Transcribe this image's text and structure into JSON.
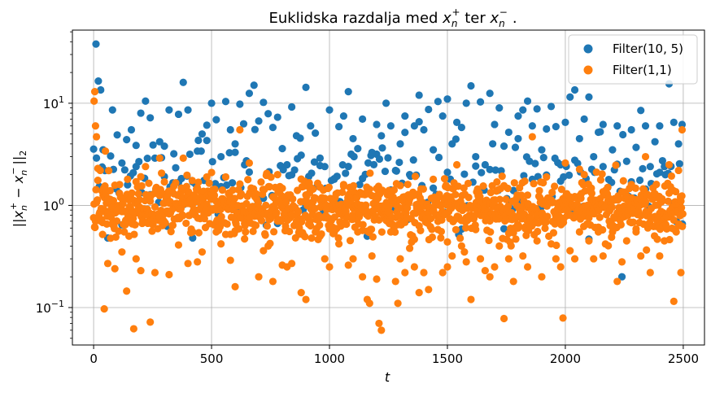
{
  "chart_data": {
    "type": "scatter",
    "title": "Euklidska razdalja med x_n^+ ter x_n^- .",
    "title_parts": {
      "prefix": "Euklidska razdalja med ",
      "v1": "x",
      "v1_sub": "n",
      "v1_sup": "+",
      "mid": " ter ",
      "v2": "x",
      "v2_sub": "n",
      "v2_sup": "−",
      "suffix": "."
    },
    "xlabel": "t",
    "ylabel": "||x_n^+ − x_n^-||_2",
    "ylabel_parts": {
      "open": "||",
      "v1": "x",
      "v1_sub": "n",
      "v1_sup": "+",
      "minus": " − ",
      "v2": "x",
      "v2_sub": "n",
      "v2_sup": "−",
      "close": "||",
      "close_sub": "2"
    },
    "xlim": [
      -90,
      2590
    ],
    "ylim": [
      0.043,
      52
    ],
    "yscale": "log",
    "x_ticks": [
      0,
      500,
      1000,
      1500,
      2000,
      2500
    ],
    "x_tick_labels": [
      "0",
      "500",
      "1000",
      "1500",
      "2000",
      "2500"
    ],
    "y_ticks": [
      0.1,
      1,
      10
    ],
    "y_tick_labels": [
      {
        "base": "10",
        "exp": "−1"
      },
      {
        "base": "10",
        "exp": "0"
      },
      {
        "base": "10",
        "exp": "1"
      }
    ],
    "grid": true,
    "legend_position": "top-right",
    "series": [
      {
        "name": "Filter(10, 5)",
        "color": "#1f77b4",
        "sample_step": 10,
        "points": [
          [
            10,
            38
          ],
          [
            20,
            16.5
          ],
          [
            30,
            13.5
          ],
          [
            40,
            3.5
          ],
          [
            60,
            0.48
          ],
          [
            80,
            8.6
          ],
          [
            100,
            4.9
          ],
          [
            120,
            2.6
          ],
          [
            140,
            4.4
          ],
          [
            160,
            5.5
          ],
          [
            180,
            2.4
          ],
          [
            200,
            8.0
          ],
          [
            220,
            10.5
          ],
          [
            240,
            7.2
          ],
          [
            260,
            2.9
          ],
          [
            280,
            4.2
          ],
          [
            300,
            3.8
          ],
          [
            320,
            8.6
          ],
          [
            340,
            3.2
          ],
          [
            360,
            7.8
          ],
          [
            380,
            16.0
          ],
          [
            400,
            8.6
          ],
          [
            420,
            0.48
          ],
          [
            440,
            3.4
          ],
          [
            460,
            5.0
          ],
          [
            480,
            6.1
          ],
          [
            500,
            10.0
          ],
          [
            520,
            6.9
          ],
          [
            540,
            3.0
          ],
          [
            560,
            10.4
          ],
          [
            580,
            5.5
          ],
          [
            600,
            4.0
          ],
          [
            620,
            9.8
          ],
          [
            640,
            2.5
          ],
          [
            660,
            12.5
          ],
          [
            680,
            15.0
          ],
          [
            700,
            6.7
          ],
          [
            720,
            10.2
          ],
          [
            740,
            7.9
          ],
          [
            760,
            5.8
          ],
          [
            780,
            7.3
          ],
          [
            800,
            3.6
          ],
          [
            820,
            2.5
          ],
          [
            840,
            9.2
          ],
          [
            860,
            4.8
          ],
          [
            880,
            3.1
          ],
          [
            900,
            14.3
          ],
          [
            920,
            6.0
          ],
          [
            940,
            5.1
          ],
          [
            960,
            2.9
          ],
          [
            980,
            2.4
          ],
          [
            1000,
            8.6
          ],
          [
            1020,
            1.8
          ],
          [
            1040,
            5.9
          ],
          [
            1060,
            7.5
          ],
          [
            1080,
            13.0
          ],
          [
            1100,
            4.5
          ],
          [
            1120,
            3.6
          ],
          [
            1140,
            7.0
          ],
          [
            1160,
            0.5
          ],
          [
            1180,
            3.3
          ],
          [
            1200,
            6.2
          ],
          [
            1220,
            4.8
          ],
          [
            1240,
            10.0
          ],
          [
            1260,
            6.0
          ],
          [
            1280,
            2.2
          ],
          [
            1300,
            4.0
          ],
          [
            1320,
            7.5
          ],
          [
            1340,
            2.0
          ],
          [
            1360,
            6.0
          ],
          [
            1380,
            12.0
          ],
          [
            1400,
            5.5
          ],
          [
            1420,
            8.7
          ],
          [
            1440,
            3.5
          ],
          [
            1460,
            10.4
          ],
          [
            1480,
            7.5
          ],
          [
            1500,
            11.0
          ],
          [
            1520,
            4.0
          ],
          [
            1540,
            6.5
          ],
          [
            1560,
            5.8
          ],
          [
            1580,
            10.0
          ],
          [
            1600,
            14.8
          ],
          [
            1620,
            3.0
          ],
          [
            1640,
            10.3
          ],
          [
            1660,
            2.5
          ],
          [
            1680,
            12.5
          ],
          [
            1700,
            6.2
          ],
          [
            1720,
            9.0
          ],
          [
            1740,
            3.8
          ],
          [
            1760,
            5.2
          ],
          [
            1780,
            1.4
          ],
          [
            1800,
            4.5
          ],
          [
            1820,
            8.6
          ],
          [
            1840,
            10.5
          ],
          [
            1860,
            6.0
          ],
          [
            1880,
            8.8
          ],
          [
            1900,
            3.5
          ],
          [
            1920,
            5.6
          ],
          [
            1940,
            9.3
          ],
          [
            1960,
            5.9
          ],
          [
            1980,
            2.5
          ],
          [
            2000,
            6.5
          ],
          [
            2020,
            11.5
          ],
          [
            2040,
            13.5
          ],
          [
            2060,
            4.5
          ],
          [
            2080,
            7.0
          ],
          [
            2100,
            11.5
          ],
          [
            2120,
            3.0
          ],
          [
            2140,
            5.2
          ],
          [
            2160,
            6.2
          ],
          [
            2180,
            1.5
          ],
          [
            2200,
            3.5
          ],
          [
            2220,
            6.0
          ],
          [
            2240,
            0.2
          ],
          [
            2260,
            2.7
          ],
          [
            2280,
            5.5
          ],
          [
            2300,
            3.7
          ],
          [
            2320,
            8.5
          ],
          [
            2340,
            6.0
          ],
          [
            2360,
            2.4
          ],
          [
            2380,
            4.2
          ],
          [
            2400,
            6.0
          ],
          [
            2420,
            2.4
          ],
          [
            2440,
            15.5
          ],
          [
            2460,
            6.5
          ],
          [
            2480,
            4.0
          ],
          [
            2495,
            6.2
          ]
        ]
      },
      {
        "name": "Filter(1,1)",
        "color": "#ff7f0e",
        "sample_step": 10,
        "points": [
          [
            2,
            10.5
          ],
          [
            5,
            13
          ],
          [
            8,
            6
          ],
          [
            12,
            4.7
          ],
          [
            18,
            2.3
          ],
          [
            28,
            2.2
          ],
          [
            38,
            0.52
          ],
          [
            45,
            0.097
          ],
          [
            50,
            3.4
          ],
          [
            60,
            0.27
          ],
          [
            70,
            1.15
          ],
          [
            80,
            0.65
          ],
          [
            90,
            0.24
          ],
          [
            100,
            0.9
          ],
          [
            110,
            1.6
          ],
          [
            120,
            0.35
          ],
          [
            130,
            0.55
          ],
          [
            140,
            0.145
          ],
          [
            150,
            0.5
          ],
          [
            160,
            0.7
          ],
          [
            170,
            0.062
          ],
          [
            180,
            0.3
          ],
          [
            190,
            1.3
          ],
          [
            200,
            0.23
          ],
          [
            220,
            2.4
          ],
          [
            240,
            0.072
          ],
          [
            260,
            0.22
          ],
          [
            280,
            2.9
          ],
          [
            300,
            1.7
          ],
          [
            320,
            0.21
          ],
          [
            340,
            1.3
          ],
          [
            360,
            0.41
          ],
          [
            380,
            2.9
          ],
          [
            400,
            0.27
          ],
          [
            420,
            0.55
          ],
          [
            440,
            0.28
          ],
          [
            460,
            0.35
          ],
          [
            480,
            1.9
          ],
          [
            500,
            2.1
          ],
          [
            520,
            0.55
          ],
          [
            540,
            0.42
          ],
          [
            560,
            1.9
          ],
          [
            580,
            0.29
          ],
          [
            600,
            0.16
          ],
          [
            620,
            5.5
          ],
          [
            640,
            0.47
          ],
          [
            660,
            2.6
          ],
          [
            680,
            0.65
          ],
          [
            700,
            0.2
          ],
          [
            720,
            0.36
          ],
          [
            740,
            0.4
          ],
          [
            760,
            0.18
          ],
          [
            780,
            2.0
          ],
          [
            800,
            0.26
          ],
          [
            820,
            0.25
          ],
          [
            840,
            0.27
          ],
          [
            860,
            0.7
          ],
          [
            880,
            0.14
          ],
          [
            900,
            0.12
          ],
          [
            920,
            1.5
          ],
          [
            940,
            0.55
          ],
          [
            960,
            0.5
          ],
          [
            980,
            0.3
          ],
          [
            1000,
            0.25
          ],
          [
            1020,
            0.55
          ],
          [
            1040,
            0.42
          ],
          [
            1060,
            1.6
          ],
          [
            1080,
            0.26
          ],
          [
            1100,
            0.3
          ],
          [
            1120,
            0.55
          ],
          [
            1140,
            0.2
          ],
          [
            1160,
            0.12
          ],
          [
            1170,
            0.11
          ],
          [
            1180,
            0.32
          ],
          [
            1200,
            0.19
          ],
          [
            1210,
            0.07
          ],
          [
            1220,
            0.06
          ],
          [
            1240,
            1.0
          ],
          [
            1260,
            0.55
          ],
          [
            1280,
            0.18
          ],
          [
            1290,
            0.11
          ],
          [
            1300,
            0.3
          ],
          [
            1320,
            0.22
          ],
          [
            1340,
            0.38
          ],
          [
            1360,
            0.25
          ],
          [
            1380,
            0.14
          ],
          [
            1400,
            0.22
          ],
          [
            1420,
            0.15
          ],
          [
            1440,
            1.8
          ],
          [
            1460,
            0.58
          ],
          [
            1480,
            0.22
          ],
          [
            1500,
            0.25
          ],
          [
            1520,
            0.32
          ],
          [
            1540,
            2.5
          ],
          [
            1560,
            0.4
          ],
          [
            1580,
            0.28
          ],
          [
            1600,
            0.12
          ],
          [
            1620,
            0.58
          ],
          [
            1640,
            0.3
          ],
          [
            1660,
            0.23
          ],
          [
            1680,
            0.2
          ],
          [
            1700,
            0.25
          ],
          [
            1720,
            0.4
          ],
          [
            1740,
            0.078
          ],
          [
            1760,
            0.3
          ],
          [
            1780,
            0.18
          ],
          [
            1800,
            0.6
          ],
          [
            1820,
            0.32
          ],
          [
            1840,
            0.25
          ],
          [
            1860,
            4.7
          ],
          [
            1880,
            0.45
          ],
          [
            1900,
            0.2
          ],
          [
            1920,
            1.9
          ],
          [
            1940,
            0.42
          ],
          [
            1960,
            0.3
          ],
          [
            1980,
            0.25
          ],
          [
            1990,
            0.079
          ],
          [
            2000,
            2.6
          ],
          [
            2020,
            0.36
          ],
          [
            2040,
            0.3
          ],
          [
            2060,
            0.55
          ],
          [
            2080,
            2.0
          ],
          [
            2100,
            0.45
          ],
          [
            2120,
            0.3
          ],
          [
            2140,
            0.55
          ],
          [
            2160,
            0.32
          ],
          [
            2180,
            1.5
          ],
          [
            2200,
            0.55
          ],
          [
            2220,
            0.18
          ],
          [
            2240,
            0.28
          ],
          [
            2260,
            0.45
          ],
          [
            2280,
            1.6
          ],
          [
            2300,
            0.55
          ],
          [
            2320,
            0.32
          ],
          [
            2340,
            3.0
          ],
          [
            2360,
            0.22
          ],
          [
            2380,
            1.3
          ],
          [
            2400,
            0.32
          ],
          [
            2420,
            0.45
          ],
          [
            2440,
            2.5
          ],
          [
            2460,
            0.115
          ],
          [
            2470,
            0.55
          ],
          [
            2480,
            2.2
          ],
          [
            2490,
            0.22
          ],
          [
            2495,
            5.5
          ]
        ]
      }
    ]
  }
}
